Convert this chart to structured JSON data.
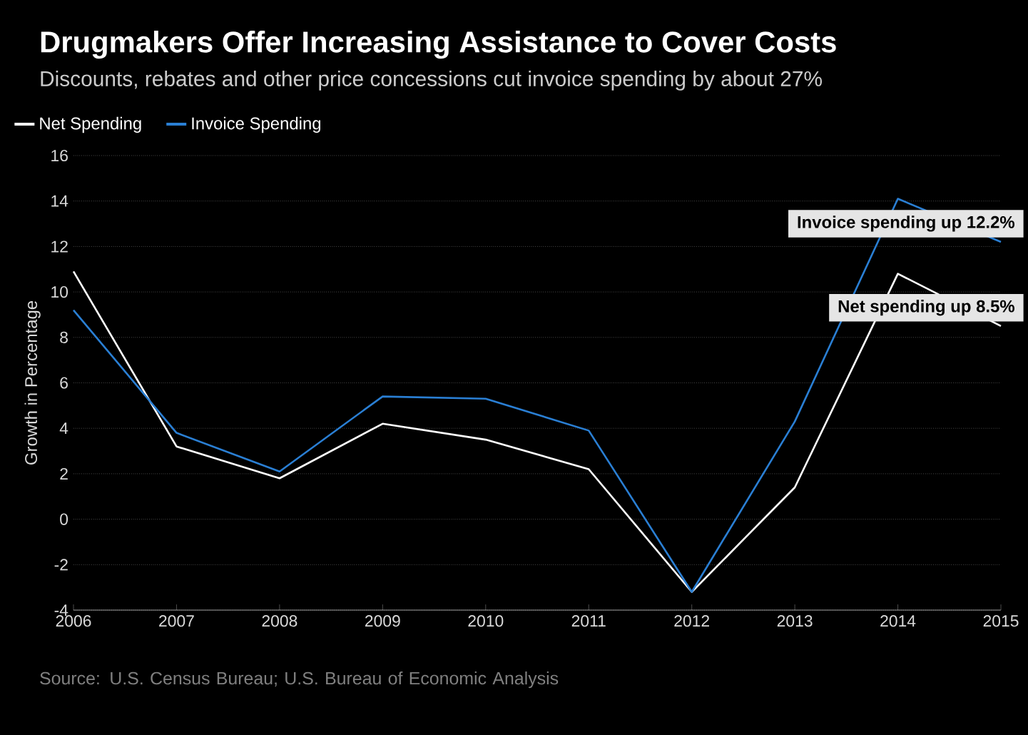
{
  "chart_data": {
    "type": "line",
    "title": "Drugmakers Offer Increasing Assistance to Cover Costs",
    "subtitle": "Discounts, rebates and other price concessions cut invoice spending by about 27%",
    "ylabel": "Growth in Percentage",
    "categories": [
      "2006",
      "2007",
      "2008",
      "2009",
      "2010",
      "2011",
      "2012",
      "2013",
      "2014",
      "2015"
    ],
    "series": [
      {
        "name": "Net Spending",
        "color": "#ffffff",
        "values": [
          10.9,
          3.2,
          1.8,
          4.2,
          3.5,
          2.2,
          -3.2,
          1.4,
          10.8,
          8.5
        ]
      },
      {
        "name": "Invoice Spending",
        "color": "#2a7fd4",
        "values": [
          9.2,
          3.8,
          2.1,
          5.4,
          5.3,
          3.9,
          -3.2,
          4.3,
          14.1,
          12.2
        ]
      }
    ],
    "ylim": [
      -4,
      16
    ],
    "yticks": [
      -4,
      -2,
      0,
      2,
      4,
      6,
      8,
      10,
      12,
      14,
      16
    ],
    "grid": "y",
    "legend": "top left",
    "marker": "none",
    "line_style": "solid",
    "annotations": [
      {
        "text": "Invoice spending up 12.2%",
        "x": "2015",
        "y": 12.2
      },
      {
        "text": "Net spending up 8.5%",
        "x": "2015",
        "y": 8.5
      },
      "Source: U.S. Census Bureau; U.S. Bureau of Economic Analysis"
    ]
  }
}
